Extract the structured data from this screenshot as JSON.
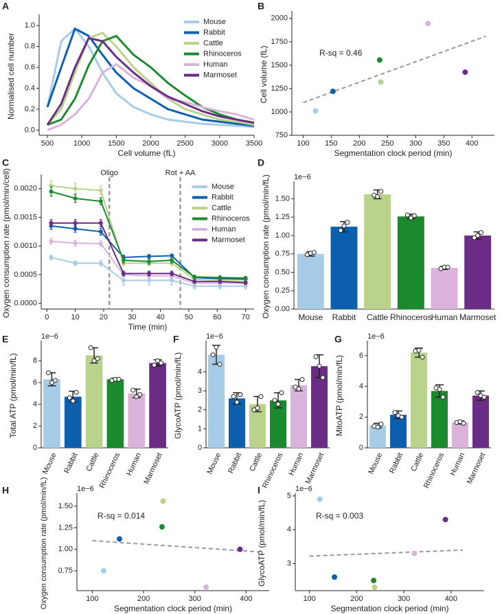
{
  "chart_data": [
    {
      "panel": "A",
      "type": "line",
      "xlabel": "Cell volume (fL)",
      "ylabel": "Normalised cell number",
      "x": [
        500,
        700,
        900,
        1100,
        1300,
        1500,
        1750,
        2000,
        2250,
        2500,
        2750,
        3000,
        3250,
        3500
      ],
      "xlim": [
        380,
        3500
      ],
      "xticks": [
        500,
        1000,
        1500,
        2000,
        2500,
        3000,
        3500
      ],
      "ylim": [
        -0.05,
        1.08
      ],
      "yticks": [
        {
          "value": 0,
          "label": "0.0"
        },
        0.2,
        0.4,
        0.6,
        0.8,
        {
          "value": 1,
          "label": "1.0"
        }
      ],
      "legend": "upper right",
      "series": [
        {
          "name": "Mouse",
          "color": "#a6cce8",
          "values": [
            0.22,
            0.85,
            0.97,
            0.8,
            0.55,
            0.35,
            0.22,
            0.15,
            0.1,
            0.08,
            0.06,
            0.05,
            0.04,
            0.03
          ]
        },
        {
          "name": "Rabbit",
          "color": "#0b5fad",
          "values": [
            0.22,
            0.6,
            0.97,
            0.9,
            0.72,
            0.55,
            0.4,
            0.3,
            0.2,
            0.15,
            0.1,
            0.08,
            0.06,
            0.04
          ]
        },
        {
          "name": "Cattle",
          "color": "#b9d38a",
          "values": [
            0.05,
            0.2,
            0.55,
            0.88,
            0.93,
            0.8,
            0.6,
            0.45,
            0.3,
            0.2,
            0.15,
            0.1,
            0.08,
            0.05
          ]
        },
        {
          "name": "Rhinoceros",
          "color": "#1b8a2e",
          "values": [
            0.05,
            0.1,
            0.3,
            0.62,
            0.85,
            0.9,
            0.72,
            0.6,
            0.45,
            0.33,
            0.22,
            0.15,
            0.1,
            0.07
          ]
        },
        {
          "name": "Human",
          "color": "#d9b3d9",
          "values": [
            0.0,
            0.05,
            0.15,
            0.3,
            0.55,
            0.63,
            0.5,
            0.42,
            0.3,
            0.27,
            0.22,
            0.18,
            0.15,
            0.1
          ]
        },
        {
          "name": "Marmoset",
          "color": "#6a2c84",
          "values": [
            0.05,
            0.25,
            0.6,
            0.88,
            0.85,
            0.7,
            0.55,
            0.42,
            0.32,
            0.25,
            0.18,
            0.13,
            0.1,
            0.07
          ]
        }
      ]
    },
    {
      "panel": "B",
      "type": "scatter",
      "xlabel": "Segmentation clock period (min)",
      "ylabel": "Cell volume (fL)",
      "x": [
        122,
        153,
        238,
        236,
        322,
        388
      ],
      "y": [
        1010,
        1220,
        1320,
        1555,
        1945,
        1425
      ],
      "colors": [
        "#a6cce8",
        "#0b5fad",
        "#b9d38a",
        "#1b8a2e",
        "#d9b3d9",
        "#6a2c84"
      ],
      "trend": {
        "x": [
          100,
          425
        ],
        "y": [
          1100,
          1810
        ]
      },
      "annotation": "R-sq = 0.46",
      "xlim": [
        80,
        440
      ],
      "xticks": [
        100,
        150,
        200,
        250,
        300,
        350,
        400
      ],
      "ylim": [
        750,
        2050
      ],
      "yticks": [
        750,
        1000,
        1250,
        1500,
        1750,
        2000
      ]
    },
    {
      "panel": "C",
      "type": "line",
      "markers": true,
      "xlabel": "Time (min)",
      "ylabel": "Oxygen consumption rate (pmol/min/cell)",
      "x": [
        1.5,
        10,
        19,
        27,
        36,
        44,
        52,
        61,
        70
      ],
      "xlim": [
        -2,
        73
      ],
      "xticks": [
        0,
        10,
        20,
        30,
        40,
        50,
        60,
        70
      ],
      "ylim": [
        -0.0001,
        0.0022
      ],
      "yticks": [
        {
          "value": 0,
          "label": "0.0000"
        },
        {
          "value": 0.0005,
          "label": "0.0005"
        },
        {
          "value": 0.001,
          "label": "0.0010"
        },
        {
          "value": 0.0015,
          "label": "0.0015"
        },
        {
          "value": 0.002,
          "label": "0.0020"
        }
      ],
      "vlines": [
        {
          "x": 22,
          "label": "Oligo"
        },
        {
          "x": 47,
          "label": "Rot + AA"
        }
      ],
      "legend": "upper right",
      "series": [
        {
          "name": "Mouse",
          "color": "#a6cce8",
          "values": [
            0.0008,
            0.0007,
            0.0007,
            0.0004,
            0.0004,
            0.0004,
            0.0003,
            0.0003,
            0.0003
          ],
          "errors": [
            4e-05,
            4e-05,
            5e-05,
            8e-05,
            8e-05,
            8e-05,
            5e-05,
            5e-05,
            5e-05
          ]
        },
        {
          "name": "Rabbit",
          "color": "#0b5fad",
          "values": [
            0.00135,
            0.0013,
            0.00125,
            0.0008,
            0.00082,
            0.00083,
            0.00045,
            0.00043,
            0.00042
          ],
          "errors": [
            6e-05,
            6e-05,
            6e-05,
            4e-05,
            3e-05,
            3e-05,
            3e-05,
            3e-05,
            3e-05
          ]
        },
        {
          "name": "Cattle",
          "color": "#b9d38a",
          "values": [
            0.00205,
            0.002,
            0.00197,
            0.0007,
            0.0007,
            0.0007,
            0.00042,
            0.0004,
            0.00038
          ],
          "errors": [
            9e-05,
            9e-05,
            8e-05,
            4e-05,
            4e-05,
            4e-05,
            3e-05,
            3e-05,
            3e-05
          ]
        },
        {
          "name": "Rhinoceros",
          "color": "#1b8a2e",
          "values": [
            0.00195,
            0.00183,
            0.00178,
            0.00075,
            0.00073,
            0.00075,
            0.00046,
            0.00045,
            0.00044
          ],
          "errors": [
            8e-05,
            7e-05,
            6e-05,
            5e-05,
            5e-05,
            5e-05,
            3e-05,
            3e-05,
            3e-05
          ]
        },
        {
          "name": "Human",
          "color": "#d9b3d9",
          "values": [
            0.00108,
            0.00105,
            0.00104,
            0.0005,
            0.00048,
            0.00048,
            0.00035,
            0.00035,
            0.00035
          ],
          "errors": [
            5e-05,
            5e-05,
            5e-05,
            4e-05,
            4e-05,
            4e-05,
            3e-05,
            3e-05,
            3e-05
          ]
        },
        {
          "name": "Marmoset",
          "color": "#6a2c84",
          "values": [
            0.0014,
            0.0014,
            0.0014,
            0.00052,
            0.00052,
            0.00052,
            0.00038,
            0.00038,
            0.00036
          ],
          "errors": [
            6e-05,
            6e-05,
            6e-05,
            4e-05,
            4e-05,
            4e-05,
            3e-05,
            3e-05,
            3e-05
          ]
        }
      ]
    },
    {
      "panel": "D",
      "type": "bar",
      "ylabel": "Oxygen consumption rate (pmol/min/fL)",
      "offset": "1e−6",
      "categories": [
        "Mouse",
        "Rabbit",
        "Cattle",
        "Rhinoceros",
        "Human",
        "Marmoset"
      ],
      "colors": [
        "#a6cce8",
        "#0b5fad",
        "#b9d38a",
        "#1b8a2e",
        "#d9b3d9",
        "#6a2c84"
      ],
      "values": [
        0.75,
        1.12,
        1.56,
        1.26,
        0.56,
        1.0
      ],
      "errors": [
        0.03,
        0.07,
        0.06,
        0.03,
        0.02,
        0.05
      ],
      "dots": [
        [
          0.74,
          0.76,
          0.77
        ],
        [
          1.07,
          1.13,
          1.18
        ],
        [
          1.55,
          1.53,
          1.6
        ],
        [
          1.28,
          1.24,
          1.27
        ],
        [
          0.55,
          0.57,
          0.57
        ],
        [
          0.97,
          1.0,
          1.04
        ]
      ],
      "ylim": [
        0,
        1.7
      ],
      "yticks": [
        {
          "value": 0,
          "label": "0.00"
        },
        0.25,
        {
          "value": 0.5,
          "label": "0.50"
        },
        0.75,
        {
          "value": 1,
          "label": "1.00"
        },
        1.25,
        {
          "value": 1.5,
          "label": "1.50"
        }
      ]
    },
    {
      "panel": "E",
      "type": "bar",
      "rotate": true,
      "ylabel": "Total ATP (pmol/min/fL)",
      "offset": "1e−6",
      "categories": [
        "Mouse",
        "Rabbit",
        "Cattle",
        "Rhinoceros",
        "Human",
        "Marmoset"
      ],
      "colors": [
        "#a6cce8",
        "#0b5fad",
        "#b9d38a",
        "#1b8a2e",
        "#d9b3d9",
        "#6a2c84"
      ],
      "values": [
        6.3,
        4.7,
        8.5,
        6.3,
        5.0,
        7.8
      ],
      "errors": [
        0.6,
        0.5,
        0.7,
        0.1,
        0.4,
        0.3
      ],
      "dots": [
        [
          6.9,
          6.0,
          6.2
        ],
        [
          4.6,
          4.3,
          5.1
        ],
        [
          9.2,
          8.0,
          8.2
        ],
        [
          6.2,
          6.3,
          6.3
        ],
        [
          5.3,
          4.7,
          4.9
        ],
        [
          7.6,
          8.0,
          7.8
        ]
      ],
      "ylim": [
        0,
        9.6
      ],
      "yticks": [
        0,
        2,
        4,
        6,
        8
      ]
    },
    {
      "panel": "F",
      "type": "bar",
      "rotate": true,
      "ylabel": "GlycoATP (pmol/min/fL)",
      "offset": "1e−6",
      "categories": [
        "Mouse",
        "Rabbit",
        "Cattle",
        "Rhinoceros",
        "Human",
        "Marmoset"
      ],
      "colors": [
        "#a6cce8",
        "#0b5fad",
        "#b9d38a",
        "#1b8a2e",
        "#d9b3d9",
        "#6a2c84"
      ],
      "values": [
        4.9,
        2.6,
        2.3,
        2.5,
        3.3,
        4.3
      ],
      "errors": [
        0.5,
        0.3,
        0.4,
        0.4,
        0.3,
        0.6
      ],
      "dots": [
        [
          4.9,
          5.3,
          4.4
        ],
        [
          2.7,
          2.4,
          2.8
        ],
        [
          2.0,
          2.1,
          2.7
        ],
        [
          2.5,
          2.3,
          2.9
        ],
        [
          3.2,
          3.1,
          3.6
        ],
        [
          4.8,
          4.3,
          3.7
        ]
      ],
      "ylim": [
        0,
        5.5
      ],
      "yticks": [
        0,
        1,
        2,
        3,
        4
      ]
    },
    {
      "panel": "G",
      "type": "bar",
      "rotate": true,
      "ylabel": "MitoATP (pmol/min/fL)",
      "offset": "1e−6",
      "categories": [
        "Mouse",
        "Rabbit",
        "Cattle",
        "Rhinoceros",
        "Human",
        "Marmoset"
      ],
      "colors": [
        "#a6cce8",
        "#0b5fad",
        "#b9d38a",
        "#1b8a2e",
        "#d9b3d9",
        "#6a2c84"
      ],
      "values": [
        1.45,
        2.15,
        6.2,
        3.7,
        1.65,
        3.4
      ],
      "errors": [
        0.15,
        0.25,
        0.3,
        0.4,
        0.1,
        0.3
      ],
      "dots": [
        [
          1.4,
          1.35,
          1.55
        ],
        [
          2.3,
          2.1,
          2.0
        ],
        [
          6.3,
          6.35,
          5.9
        ],
        [
          3.9,
          3.8,
          3.3
        ],
        [
          1.65,
          1.7,
          1.6
        ],
        [
          3.6,
          3.4,
          3.3
        ]
      ],
      "ylim": [
        0,
        6.8
      ],
      "yticks": [
        0,
        2,
        4,
        6
      ]
    },
    {
      "panel": "H",
      "type": "scatter",
      "xlabel": "Segmentation clock period (min)",
      "ylabel": "Oxygen consumption rate (pmol/min/fL)",
      "offset": "1e−6",
      "x": [
        122,
        153,
        238,
        236,
        322,
        388
      ],
      "y": [
        0.75,
        1.12,
        1.56,
        1.26,
        0.56,
        1.0
      ],
      "colors": [
        "#a6cce8",
        "#0b5fad",
        "#b9d38a",
        "#1b8a2e",
        "#d9b3d9",
        "#6a2c84"
      ],
      "trend": {
        "x": [
          100,
          425
        ],
        "y": [
          1.1,
          0.97
        ]
      },
      "annotation": "R-sq = 0.014",
      "xlim": [
        70,
        445
      ],
      "xticks": [
        100,
        200,
        300,
        400
      ],
      "ylim": [
        0.52,
        1.62
      ],
      "yticks": [
        0.75,
        {
          "value": 1,
          "label": "1.00"
        },
        1.25,
        {
          "value": 1.5,
          "label": "1.50"
        }
      ]
    },
    {
      "panel": "I",
      "type": "scatter",
      "xlabel": "Segmentation clock period (min)",
      "ylabel": "GlycoATP (pmol/min/fL)",
      "offset": "1e−6",
      "x": [
        122,
        153,
        238,
        236,
        322,
        388
      ],
      "y": [
        4.9,
        2.6,
        2.3,
        2.5,
        3.3,
        4.3
      ],
      "colors": [
        "#a6cce8",
        "#0b5fad",
        "#b9d38a",
        "#1b8a2e",
        "#d9b3d9",
        "#6a2c84"
      ],
      "trend": {
        "x": [
          100,
          425
        ],
        "y": [
          3.22,
          3.4
        ]
      },
      "annotation": "R-sq = 0.003",
      "xlim": [
        70,
        470
      ],
      "xticks": [
        100,
        200,
        300,
        400
      ],
      "ylim": [
        2.2,
        5.0
      ],
      "yticks": [
        3,
        4,
        5
      ]
    }
  ]
}
